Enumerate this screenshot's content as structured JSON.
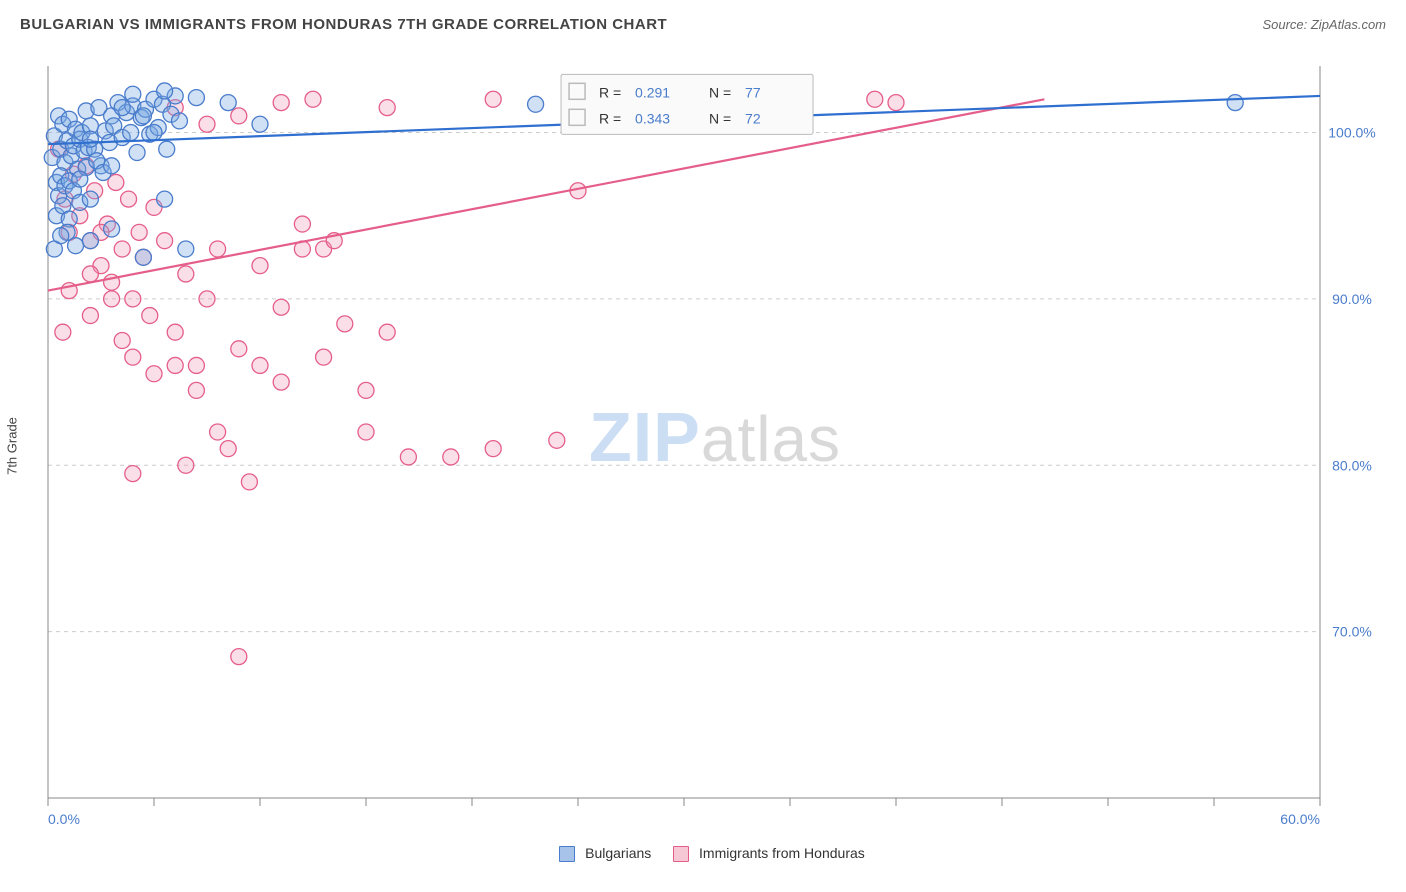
{
  "header": {
    "title": "BULGARIAN VS IMMIGRANTS FROM HONDURAS 7TH GRADE CORRELATION CHART",
    "source_label": "Source: ZipAtlas.com"
  },
  "watermark": {
    "part1": "ZIP",
    "part2": "atlas"
  },
  "axes": {
    "y_label": "7th Grade",
    "x_range": [
      0,
      60
    ],
    "y_range": [
      60,
      104
    ],
    "x_ticks": [
      0,
      5,
      10,
      15,
      20,
      25,
      30,
      35,
      40,
      45,
      50,
      55,
      60
    ],
    "x_tick_labels": {
      "0": "0.0%",
      "60": "60.0%"
    },
    "y_ticks": [
      70,
      80,
      90,
      100
    ],
    "y_tick_labels": {
      "70": "70.0%",
      "80": "80.0%",
      "90": "90.0%",
      "100": "100.0%"
    }
  },
  "bottom_legend": {
    "items": [
      {
        "label": "Bulgarians",
        "fill": "#a7c3ea",
        "stroke": "#4a7ccc"
      },
      {
        "label": "Immigrants from Honduras",
        "fill": "#f6c8d6",
        "stroke": "#e55e8a"
      }
    ]
  },
  "corr_box": {
    "rows": [
      {
        "swatch_fill": "#a7c3ea",
        "swatch_stroke": "#4a7ccc",
        "r_label": "R =",
        "r_value": "0.291",
        "n_label": "N =",
        "n_value": "77"
      },
      {
        "swatch_fill": "#f6c8d6",
        "swatch_stroke": "#e55e8a",
        "r_label": "R =",
        "r_value": "0.343",
        "n_label": "N =",
        "n_value": "72"
      }
    ]
  },
  "series": {
    "marker_radius": 8,
    "bulgarians": {
      "fill": "rgba(120,170,225,0.35)",
      "stroke": "#4a7ccc",
      "line_stroke": "#2f6fd0",
      "line_width": 2.2,
      "trend": {
        "x1": 0,
        "y1": 99.3,
        "x2": 60,
        "y2": 102.2
      },
      "points": [
        [
          0.2,
          98.5
        ],
        [
          0.3,
          99.8
        ],
        [
          0.4,
          97.0
        ],
        [
          0.5,
          101.0
        ],
        [
          0.6,
          99.0
        ],
        [
          0.7,
          100.5
        ],
        [
          0.8,
          98.2
        ],
        [
          0.9,
          99.5
        ],
        [
          1.0,
          100.8
        ],
        [
          1.1,
          98.6
        ],
        [
          1.2,
          99.2
        ],
        [
          1.3,
          100.2
        ],
        [
          1.4,
          97.8
        ],
        [
          1.5,
          99.6
        ],
        [
          1.6,
          100.0
        ],
        [
          1.7,
          98.9
        ],
        [
          1.8,
          101.3
        ],
        [
          1.9,
          99.1
        ],
        [
          2.0,
          100.4
        ],
        [
          2.2,
          99.0
        ],
        [
          2.4,
          101.5
        ],
        [
          2.5,
          98.0
        ],
        [
          2.7,
          100.1
        ],
        [
          2.9,
          99.4
        ],
        [
          3.0,
          101.0
        ],
        [
          3.1,
          100.4
        ],
        [
          3.3,
          101.8
        ],
        [
          3.5,
          99.7
        ],
        [
          3.7,
          101.2
        ],
        [
          3.9,
          100.0
        ],
        [
          4.0,
          101.6
        ],
        [
          4.2,
          98.8
        ],
        [
          4.4,
          100.9
        ],
        [
          4.6,
          101.4
        ],
        [
          4.8,
          99.9
        ],
        [
          5.0,
          102.0
        ],
        [
          5.2,
          100.3
        ],
        [
          5.4,
          101.7
        ],
        [
          5.6,
          99.0
        ],
        [
          5.8,
          101.1
        ],
        [
          6.0,
          102.2
        ],
        [
          6.2,
          100.7
        ],
        [
          0.5,
          96.2
        ],
        [
          0.6,
          97.4
        ],
        [
          0.8,
          96.8
        ],
        [
          1.0,
          97.1
        ],
        [
          1.2,
          96.5
        ],
        [
          1.5,
          95.8
        ],
        [
          1.8,
          97.9
        ],
        [
          2.0,
          96.0
        ],
        [
          2.3,
          98.3
        ],
        [
          2.6,
          97.6
        ],
        [
          0.4,
          95.0
        ],
        [
          0.7,
          95.6
        ],
        [
          1.0,
          94.8
        ],
        [
          1.5,
          97.2
        ],
        [
          2.0,
          99.6
        ],
        [
          3.0,
          98.0
        ],
        [
          0.3,
          93.0
        ],
        [
          0.9,
          94.0
        ],
        [
          3.5,
          101.5
        ],
        [
          4.0,
          102.3
        ],
        [
          4.5,
          101.0
        ],
        [
          5.0,
          100.0
        ],
        [
          5.5,
          102.5
        ],
        [
          7.0,
          102.1
        ],
        [
          0.6,
          93.8
        ],
        [
          1.3,
          93.2
        ],
        [
          2.0,
          93.5
        ],
        [
          3.0,
          94.2
        ],
        [
          4.5,
          92.5
        ],
        [
          5.5,
          96.0
        ],
        [
          6.5,
          93.0
        ],
        [
          8.5,
          101.8
        ],
        [
          10.0,
          100.5
        ],
        [
          23.0,
          101.7
        ],
        [
          56.0,
          101.8
        ]
      ]
    },
    "honduras": {
      "fill": "rgba(240,150,180,0.30)",
      "stroke": "#e55e8a",
      "line_stroke": "#e55e8a",
      "line_width": 2.2,
      "trend": {
        "x1": 0,
        "y1": 90.5,
        "x2": 47,
        "y2": 102.0
      },
      "points": [
        [
          0.5,
          99.0
        ],
        [
          0.8,
          96.0
        ],
        [
          1.0,
          94.0
        ],
        [
          1.2,
          97.5
        ],
        [
          1.5,
          95.0
        ],
        [
          1.8,
          98.0
        ],
        [
          2.0,
          93.5
        ],
        [
          2.2,
          96.5
        ],
        [
          2.5,
          92.0
        ],
        [
          2.8,
          94.5
        ],
        [
          3.0,
          91.0
        ],
        [
          3.2,
          97.0
        ],
        [
          3.5,
          93.0
        ],
        [
          3.8,
          96.0
        ],
        [
          4.0,
          90.0
        ],
        [
          4.3,
          94.0
        ],
        [
          4.5,
          92.5
        ],
        [
          4.8,
          89.0
        ],
        [
          5.0,
          95.5
        ],
        [
          5.5,
          93.5
        ],
        [
          6.0,
          88.0
        ],
        [
          6.5,
          91.5
        ],
        [
          7.0,
          86.0
        ],
        [
          7.5,
          90.0
        ],
        [
          8.0,
          93.0
        ],
        [
          9.0,
          87.0
        ],
        [
          10.0,
          92.0
        ],
        [
          11.0,
          89.5
        ],
        [
          12.0,
          94.5
        ],
        [
          13.0,
          93.0
        ],
        [
          14.0,
          88.5
        ],
        [
          6.0,
          101.5
        ],
        [
          7.5,
          100.5
        ],
        [
          9.0,
          101.0
        ],
        [
          11.0,
          101.8
        ],
        [
          12.5,
          102.0
        ],
        [
          16.0,
          101.5
        ],
        [
          21.0,
          102.0
        ],
        [
          25.0,
          96.5
        ],
        [
          28.0,
          102.0
        ],
        [
          30.0,
          102.0
        ],
        [
          39.0,
          102.0
        ],
        [
          40.0,
          101.8
        ],
        [
          2.0,
          89.0
        ],
        [
          3.5,
          87.5
        ],
        [
          4.0,
          86.5
        ],
        [
          5.0,
          85.5
        ],
        [
          6.0,
          86.0
        ],
        [
          7.0,
          84.5
        ],
        [
          8.5,
          81.0
        ],
        [
          15.0,
          84.5
        ],
        [
          13.0,
          86.5
        ],
        [
          10.0,
          86.0
        ],
        [
          11.0,
          85.0
        ],
        [
          12.0,
          93.0
        ],
        [
          8.0,
          82.0
        ],
        [
          9.5,
          79.0
        ],
        [
          17.0,
          80.5
        ],
        [
          15.0,
          82.0
        ],
        [
          16.0,
          88.0
        ],
        [
          13.5,
          93.5
        ],
        [
          19.0,
          80.5
        ],
        [
          21.0,
          81.0
        ],
        [
          24.0,
          81.5
        ],
        [
          4.0,
          79.5
        ],
        [
          2.0,
          91.5
        ],
        [
          3.0,
          90.0
        ],
        [
          1.0,
          90.5
        ],
        [
          0.7,
          88.0
        ],
        [
          2.5,
          94.0
        ],
        [
          6.5,
          80.0
        ],
        [
          9.0,
          68.5
        ]
      ]
    }
  },
  "style": {
    "plot_bg": "#ffffff",
    "grid_color": "#cccccc",
    "axis_color": "#888888",
    "tick_label_color": "#4a7ccc",
    "title_color": "#444444",
    "title_fontsize": 15,
    "source_color": "#666666"
  }
}
